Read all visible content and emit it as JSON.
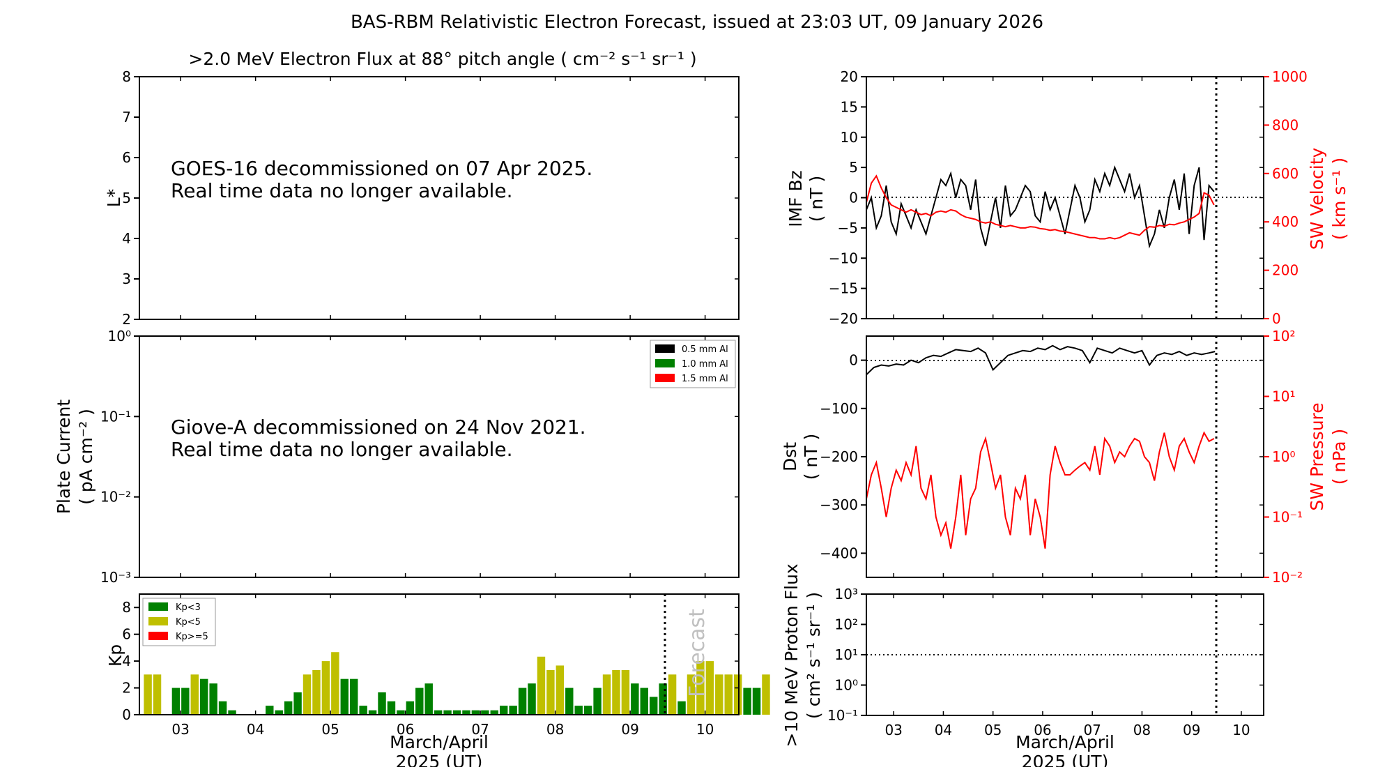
{
  "figure": {
    "title": "BAS-RBM Relativistic Electron Forecast, issued at 23:03 UT, 09 January 2026",
    "xlabel_line1": "March/April",
    "xlabel_line2": "2025 (UT)",
    "forecast_label": "Forecast"
  },
  "colors": {
    "kp_low": "#008000",
    "kp_mid": "#bfbf00",
    "kp_high": "#ff0000",
    "imf": "#000000",
    "sw": "#ff0000"
  },
  "chart_data": [
    {
      "id": "electron_flux",
      "type": "heatmap",
      "title": ">2.0 MeV Electron Flux at 88° pitch angle ( cm⁻² s⁻¹ sr⁻¹ )",
      "ylabel": "L*",
      "xlim": [
        2.45,
        10.45
      ],
      "ylim": [
        2,
        8
      ],
      "yticks": [
        2,
        3,
        4,
        5,
        6,
        7,
        8
      ],
      "xticks": [],
      "message_line1": "GOES-16 decommissioned on 07 Apr 2025.",
      "message_line2": "Real time data no longer available."
    },
    {
      "id": "plate_current",
      "type": "line",
      "ylabel_line1": "Plate Current",
      "ylabel_line2": "( pA cm⁻² )",
      "yscale": "log",
      "ylim": [
        0.001,
        1
      ],
      "yticks": [
        "10⁻³",
        "10⁻²",
        "10⁻¹",
        "10⁰"
      ],
      "legend": [
        "0.5 mm Al",
        "1.0 mm Al",
        "1.5 mm Al"
      ],
      "legend_colors": [
        "#000000",
        "#008000",
        "#ff0000"
      ],
      "legend_position": "top-right",
      "message_line1": "Giove-A decommissioned on 24 Nov 2021.",
      "message_line2": "Real time data no longer available."
    },
    {
      "id": "kp",
      "type": "bar",
      "ylabel": "Kp",
      "ylim": [
        0,
        9
      ],
      "yticks": [
        0,
        2,
        4,
        6,
        8
      ],
      "xticks": [
        "03",
        "04",
        "05",
        "06",
        "07",
        "08",
        "09",
        "10"
      ],
      "xtick_values": [
        3,
        4,
        5,
        6,
        7,
        8,
        9,
        10
      ],
      "xlim": [
        2.45,
        10.45
      ],
      "forecast_start": 9.47,
      "legend": [
        "Kp<3",
        "Kp<5",
        "Kp>=5"
      ],
      "legend_position": "top-left",
      "bar_start": 2.5,
      "bar_step": 0.125,
      "values": [
        3,
        3,
        0,
        2,
        2,
        3,
        2.67,
        2.33,
        1,
        0.33,
        0,
        0,
        0,
        0.67,
        0.33,
        1,
        1.67,
        3,
        3.33,
        4,
        4.67,
        2.67,
        2.67,
        0.67,
        0.33,
        1.67,
        1,
        0.33,
        1,
        2,
        2.33,
        0.33,
        0.33,
        0.33,
        0.33,
        0.33,
        0.33,
        0.33,
        0.67,
        0.67,
        2,
        2.33,
        4.33,
        3.33,
        3.67,
        2,
        0.67,
        0.67,
        2,
        3,
        3.33,
        3.33,
        2.33,
        2,
        1.33,
        2.33,
        3,
        1,
        3,
        4,
        4,
        3,
        3,
        3,
        2,
        2,
        3
      ]
    },
    {
      "id": "imf_sw_velocity",
      "type": "line",
      "ylabel_left_line1": "IMF Bz",
      "ylabel_left_line2": "( nT )",
      "ylabel_right_line1": "SW Velocity",
      "ylabel_right_line2": "( km s⁻¹ )",
      "xlim": [
        2.45,
        10.45
      ],
      "ylim_left": [
        -20,
        20
      ],
      "yticks_left": [
        -20,
        -15,
        -10,
        -5,
        0,
        5,
        10,
        15,
        20
      ],
      "ylim_right": [
        0,
        1000
      ],
      "yticks_right": [
        0,
        200,
        400,
        600,
        800,
        1000
      ],
      "now": 9.47,
      "series": [
        {
          "name": "IMF Bz",
          "axis": "left",
          "x": [
            2.45,
            2.55,
            2.65,
            2.75,
            2.85,
            2.95,
            3.05,
            3.15,
            3.25,
            3.35,
            3.45,
            3.55,
            3.65,
            3.75,
            3.85,
            3.95,
            4.05,
            4.15,
            4.25,
            4.35,
            4.45,
            4.55,
            4.65,
            4.75,
            4.85,
            4.95,
            5.05,
            5.15,
            5.25,
            5.35,
            5.45,
            5.55,
            5.65,
            5.75,
            5.85,
            5.95,
            6.05,
            6.15,
            6.25,
            6.35,
            6.45,
            6.55,
            6.65,
            6.75,
            6.85,
            6.95,
            7.05,
            7.15,
            7.25,
            7.35,
            7.45,
            7.55,
            7.65,
            7.75,
            7.85,
            7.95,
            8.05,
            8.15,
            8.25,
            8.35,
            8.45,
            8.55,
            8.65,
            8.75,
            8.85,
            8.95,
            9.05,
            9.15,
            9.25,
            9.35,
            9.45
          ],
          "y": [
            -2,
            0,
            -5,
            -3,
            2,
            -4,
            -6,
            -1,
            -3,
            -5,
            -2,
            -4,
            -6,
            -3,
            0,
            3,
            2,
            4,
            0,
            3,
            2,
            -2,
            3,
            -5,
            -8,
            -4,
            0,
            -5,
            2,
            -3,
            -2,
            0,
            2,
            1,
            -3,
            -4,
            1,
            -2,
            0,
            -3,
            -6,
            -2,
            2,
            0,
            -4,
            -2,
            3,
            1,
            4,
            2,
            5,
            3,
            1,
            4,
            0,
            2,
            -3,
            -8,
            -6,
            -2,
            -5,
            0,
            3,
            -2,
            4,
            -6,
            2,
            5,
            -7,
            2,
            1
          ]
        },
        {
          "name": "SW Velocity",
          "axis": "right",
          "x": [
            2.45,
            2.55,
            2.65,
            2.75,
            2.85,
            2.95,
            3.05,
            3.15,
            3.25,
            3.35,
            3.45,
            3.55,
            3.65,
            3.75,
            3.85,
            3.95,
            4.05,
            4.15,
            4.25,
            4.35,
            4.45,
            4.55,
            4.65,
            4.75,
            4.85,
            4.95,
            5.05,
            5.15,
            5.25,
            5.35,
            5.45,
            5.55,
            5.65,
            5.75,
            5.85,
            5.95,
            6.05,
            6.15,
            6.25,
            6.35,
            6.45,
            6.55,
            6.65,
            6.75,
            6.85,
            6.95,
            7.05,
            7.15,
            7.25,
            7.35,
            7.45,
            7.55,
            7.65,
            7.75,
            7.85,
            7.95,
            8.05,
            8.15,
            8.25,
            8.35,
            8.45,
            8.55,
            8.65,
            8.75,
            8.85,
            8.95,
            9.05,
            9.15,
            9.25,
            9.35,
            9.45
          ],
          "y": [
            480,
            560,
            590,
            540,
            500,
            470,
            460,
            450,
            440,
            450,
            440,
            430,
            435,
            425,
            440,
            445,
            440,
            450,
            445,
            430,
            420,
            415,
            410,
            400,
            395,
            400,
            390,
            385,
            380,
            385,
            380,
            375,
            375,
            380,
            378,
            372,
            370,
            365,
            368,
            362,
            360,
            355,
            350,
            345,
            340,
            335,
            335,
            330,
            330,
            335,
            330,
            335,
            345,
            355,
            350,
            345,
            365,
            380,
            378,
            385,
            382,
            390,
            388,
            395,
            400,
            410,
            420,
            435,
            520,
            510,
            470
          ]
        }
      ]
    },
    {
      "id": "dst_sw_pressure",
      "type": "line",
      "ylabel_left_line1": "Dst",
      "ylabel_left_line2": "( nT )",
      "ylabel_right_line1": "SW Pressure",
      "ylabel_right_line2": "( nPa )",
      "xlim": [
        2.45,
        10.45
      ],
      "ylim_left": [
        -450,
        50
      ],
      "yticks_left": [
        -400,
        -300,
        -200,
        -100,
        0
      ],
      "ylim_right": [
        0.01,
        100
      ],
      "yscale_right": "log",
      "yticks_right": [
        "10⁻²",
        "10⁻¹",
        "10⁰",
        "10¹",
        "10²"
      ],
      "now": 9.47,
      "series": [
        {
          "name": "Dst",
          "axis": "left",
          "x": [
            2.45,
            2.6,
            2.75,
            2.9,
            3.05,
            3.2,
            3.35,
            3.5,
            3.65,
            3.8,
            3.95,
            4.1,
            4.25,
            4.4,
            4.55,
            4.7,
            4.85,
            5.0,
            5.15,
            5.3,
            5.45,
            5.6,
            5.75,
            5.9,
            6.05,
            6.2,
            6.35,
            6.5,
            6.65,
            6.8,
            6.95,
            7.1,
            7.25,
            7.4,
            7.55,
            7.7,
            7.85,
            8.0,
            8.15,
            8.3,
            8.45,
            8.6,
            8.75,
            8.9,
            9.05,
            9.2,
            9.35,
            9.47
          ],
          "y": [
            -30,
            -15,
            -10,
            -12,
            -8,
            -10,
            0,
            -5,
            5,
            10,
            8,
            15,
            22,
            20,
            18,
            25,
            15,
            -20,
            -5,
            10,
            15,
            20,
            18,
            25,
            22,
            30,
            22,
            28,
            25,
            20,
            -5,
            25,
            20,
            15,
            25,
            20,
            15,
            20,
            -10,
            10,
            15,
            12,
            18,
            10,
            15,
            12,
            15,
            18
          ]
        },
        {
          "name": "SW Pressure",
          "axis": "right",
          "x": [
            2.45,
            2.55,
            2.65,
            2.75,
            2.85,
            2.95,
            3.05,
            3.15,
            3.25,
            3.35,
            3.45,
            3.55,
            3.65,
            3.75,
            3.85,
            3.95,
            4.05,
            4.15,
            4.25,
            4.35,
            4.45,
            4.55,
            4.65,
            4.75,
            4.85,
            4.95,
            5.05,
            5.15,
            5.25,
            5.35,
            5.45,
            5.55,
            5.65,
            5.75,
            5.85,
            5.95,
            6.05,
            6.15,
            6.25,
            6.35,
            6.45,
            6.55,
            6.65,
            6.75,
            6.85,
            6.95,
            7.05,
            7.15,
            7.25,
            7.35,
            7.45,
            7.55,
            7.65,
            7.75,
            7.85,
            7.95,
            8.05,
            8.15,
            8.25,
            8.35,
            8.45,
            8.55,
            8.65,
            8.75,
            8.85,
            8.95,
            9.05,
            9.15,
            9.25,
            9.35,
            9.45
          ],
          "y": [
            0.2,
            0.5,
            0.8,
            0.3,
            0.1,
            0.3,
            0.6,
            0.4,
            0.8,
            0.5,
            1.5,
            0.3,
            0.2,
            0.5,
            0.1,
            0.05,
            0.08,
            0.03,
            0.1,
            0.5,
            0.05,
            0.2,
            0.3,
            1.2,
            2.0,
            0.8,
            0.3,
            0.5,
            0.1,
            0.05,
            0.3,
            0.2,
            0.5,
            0.05,
            0.2,
            0.1,
            0.03,
            0.5,
            1.5,
            0.8,
            0.5,
            0.5,
            0.6,
            0.7,
            0.8,
            0.6,
            1.5,
            0.5,
            2.0,
            1.5,
            0.8,
            1.2,
            1.0,
            1.5,
            2.0,
            1.8,
            1.0,
            0.8,
            0.4,
            1.2,
            2.5,
            1.0,
            0.6,
            1.5,
            2.0,
            1.2,
            0.8,
            1.5,
            2.5,
            1.8,
            2.0
          ]
        }
      ]
    },
    {
      "id": "proton_flux",
      "type": "line",
      "ylabel_line1": ">10 MeV Proton Flux",
      "ylabel_line2": "( cm² s⁻¹ sr⁻¹ )",
      "yscale": "log",
      "ylim": [
        0.1,
        1000
      ],
      "yticks": [
        "10⁻¹",
        "10⁰",
        "10¹",
        "10²",
        "10³"
      ],
      "threshold": 10,
      "xticks": [
        "03",
        "04",
        "05",
        "06",
        "07",
        "08",
        "09",
        "10"
      ],
      "xtick_values": [
        3,
        4,
        5,
        6,
        7,
        8,
        9,
        10
      ],
      "xlim": [
        2.45,
        10.45
      ],
      "now": 9.47
    }
  ]
}
